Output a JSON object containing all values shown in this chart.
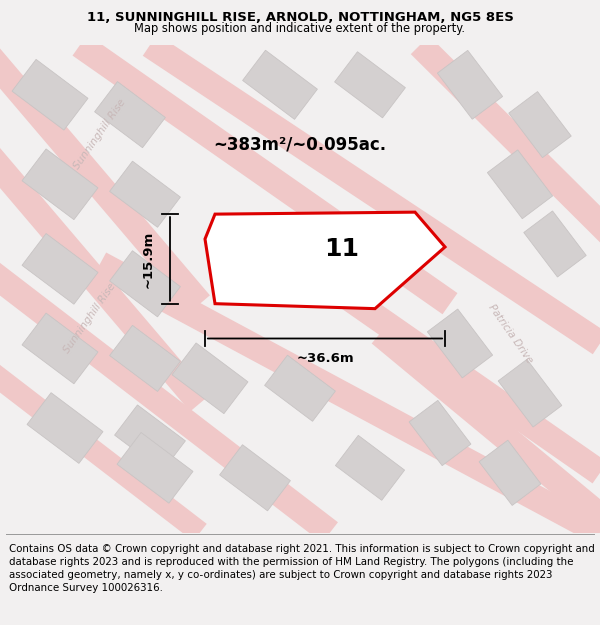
{
  "title_line1": "11, SUNNINGHILL RISE, ARNOLD, NOTTINGHAM, NG5 8ES",
  "title_line2": "Map shows position and indicative extent of the property.",
  "footer_text": "Contains OS data © Crown copyright and database right 2021. This information is subject to Crown copyright and database rights 2023 and is reproduced with the permission of HM Land Registry. The polygons (including the associated geometry, namely x, y co-ordinates) are subject to Crown copyright and database rights 2023 Ordnance Survey 100026316.",
  "area_label": "~383m²/~0.095ac.",
  "number_label": "11",
  "width_label": "~36.6m",
  "height_label": "~15.9m",
  "bg_color": "#f2f0f0",
  "map_bg_color": "#f2f0f0",
  "road_color": "#f0c8c8",
  "building_color": "#d4d0d0",
  "building_edge_color": "#c8c4c4",
  "plot_line_color": "#dd0000",
  "street_label_color": "#c8b8b8",
  "title_fontsize": 9.5,
  "footer_fontsize": 7.5
}
